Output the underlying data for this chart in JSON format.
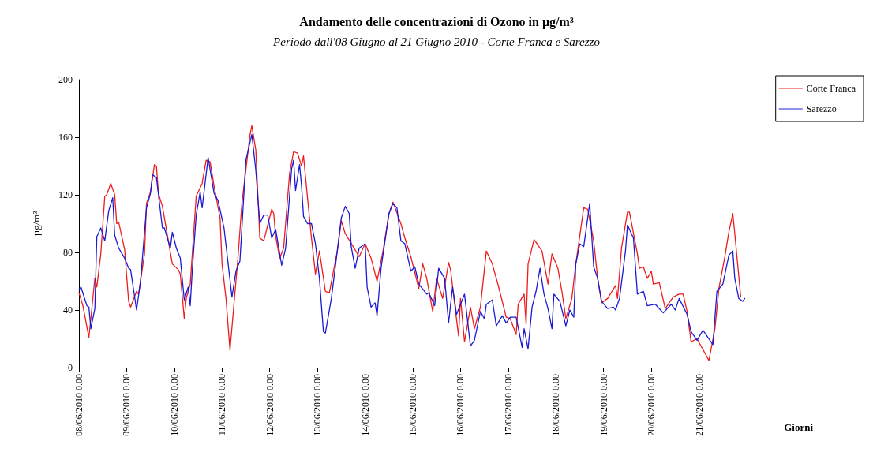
{
  "chart_data": {
    "type": "line",
    "title": "Andamento delle concentrazioni di Ozono in µg/m³",
    "subtitle": "Periodo dall'08 Giugno al 21 Giugno 2010 - Corte Franca e Sarezzo",
    "xlabel": "Giorni",
    "ylabel": "µg/m³",
    "legend": "top right",
    "grid": false,
    "marker": "none",
    "line_style": "solid",
    "xlim": [
      "2010-06-08T00:00",
      "2010-06-22T00:00"
    ],
    "xticks": [
      {
        "value": "2010-06-08T00:00",
        "label": "08/06/2010 0.00"
      },
      {
        "value": "2010-06-09T00:00",
        "label": "09/06/2010 0.00"
      },
      {
        "value": "2010-06-10T00:00",
        "label": "10/06/2010 0.00"
      },
      {
        "value": "2010-06-11T00:00",
        "label": "11/06/2010 0.00"
      },
      {
        "value": "2010-06-12T00:00",
        "label": "12/06/2010 0.00"
      },
      {
        "value": "2010-06-13T00:00",
        "label": "13/06/2010 0.00"
      },
      {
        "value": "2010-06-14T00:00",
        "label": "14/06/2010 0.00"
      },
      {
        "value": "2010-06-15T00:00",
        "label": "15/06/2010 0.00"
      },
      {
        "value": "2010-06-16T00:00",
        "label": "16/06/2010 0.00"
      },
      {
        "value": "2010-06-17T00:00",
        "label": "17/06/2010 0.00"
      },
      {
        "value": "2010-06-18T00:00",
        "label": "18/06/2010 0.00"
      },
      {
        "value": "2010-06-19T00:00",
        "label": "19/06/2010 0.00"
      },
      {
        "value": "2010-06-20T00:00",
        "label": "20/06/2010 0.00"
      },
      {
        "value": "2010-06-21T00:00",
        "label": "21/06/2010 0.00"
      },
      {
        "value": "2010-06-22T00:00",
        "label": null
      }
    ],
    "ylim": [
      0,
      200
    ],
    "yticks": [
      0,
      40,
      80,
      120,
      160,
      200
    ],
    "series": [
      {
        "name": "Corte Franca",
        "color": "#ee1c1c",
        "x": [
          "2010-06-08T00:00",
          "2010-06-08T02:00",
          "2010-06-08T05:00",
          "2010-06-08T06:00",
          "2010-06-08T08:00",
          "2010-06-08T09:00",
          "2010-06-08T11:00",
          "2010-06-08T13:00",
          "2010-06-08T14:00",
          "2010-06-08T16:00",
          "2010-06-08T18:00",
          "2010-06-08T19:00",
          "2010-06-08T20:00",
          "2010-06-08T23:00",
          "2010-06-09T01:00",
          "2010-06-09T02:00",
          "2010-06-09T05:00",
          "2010-06-09T06:00",
          "2010-06-09T09:00",
          "2010-06-09T10:00",
          "2010-06-09T12:00",
          "2010-06-09T14:00",
          "2010-06-09T15:00",
          "2010-06-09T16:00",
          "2010-06-09T18:00",
          "2010-06-09T21:00",
          "2010-06-09T23:00",
          "2010-06-10T02:00",
          "2010-06-10T03:00",
          "2010-06-10T05:00",
          "2010-06-10T06:00",
          "2010-06-10T08:00",
          "2010-06-10T11:00",
          "2010-06-10T14:00",
          "2010-06-10T16:00",
          "2010-06-10T18:00",
          "2010-06-10T20:00",
          "2010-06-10T23:00",
          "2010-06-11T00:00",
          "2010-06-11T02:00",
          "2010-06-11T04:00",
          "2010-06-11T06:00",
          "2010-06-11T08:00",
          "2010-06-11T10:00",
          "2010-06-11T14:00",
          "2010-06-11T15:00",
          "2010-06-11T17:00",
          "2010-06-11T19:00",
          "2010-06-11T21:00",
          "2010-06-12T01:00",
          "2010-06-12T02:00",
          "2010-06-12T03:00",
          "2010-06-12T05:00",
          "2010-06-12T07:00",
          "2010-06-12T10:00",
          "2010-06-12T12:00",
          "2010-06-12T14:00",
          "2010-06-12T16:00",
          "2010-06-12T17:00",
          "2010-06-12T19:00",
          "2010-06-12T21:00",
          "2010-06-12T23:00",
          "2010-06-13T01:00",
          "2010-06-13T04:00",
          "2010-06-13T06:00",
          "2010-06-13T10:00",
          "2010-06-13T12:00",
          "2010-06-13T14:00",
          "2010-06-13T18:00",
          "2010-06-13T21:00",
          "2010-06-14T00:00",
          "2010-06-14T03:00",
          "2010-06-14T06:00",
          "2010-06-14T09:00",
          "2010-06-14T12:00",
          "2010-06-14T14:00",
          "2010-06-14T18:00",
          "2010-06-14T20:00",
          "2010-06-14T23:00",
          "2010-06-15T03:00",
          "2010-06-15T05:00",
          "2010-06-15T07:00",
          "2010-06-15T10:00",
          "2010-06-15T12:00",
          "2010-06-15T15:00",
          "2010-06-15T18:00",
          "2010-06-15T19:00",
          "2010-06-15T23:00",
          "2010-06-16T00:00",
          "2010-06-16T02:00",
          "2010-06-16T05:00",
          "2010-06-16T07:00",
          "2010-06-16T10:00",
          "2010-06-16T13:00",
          "2010-06-16T16:00",
          "2010-06-16T19:00",
          "2010-06-16T23:00",
          "2010-06-17T01:00",
          "2010-06-17T04:00",
          "2010-06-17T05:00",
          "2010-06-17T08:00",
          "2010-06-17T09:00",
          "2010-06-17T10:00",
          "2010-06-17T13:00",
          "2010-06-17T16:00",
          "2010-06-17T17:00",
          "2010-06-17T20:00",
          "2010-06-17T22:00",
          "2010-06-18T01:00",
          "2010-06-18T03:00",
          "2010-06-18T05:00",
          "2010-06-18T08:00",
          "2010-06-18T10:00",
          "2010-06-18T14:00",
          "2010-06-18T16:00",
          "2010-06-18T19:00",
          "2010-06-18T21:00",
          "2010-06-18T23:00",
          "2010-06-19T02:00",
          "2010-06-19T06:00",
          "2010-06-19T07:00",
          "2010-06-19T09:00",
          "2010-06-19T12:00",
          "2010-06-19T13:00",
          "2010-06-19T17:00",
          "2010-06-19T18:00",
          "2010-06-19T20:00",
          "2010-06-19T22:00",
          "2010-06-20T00:00",
          "2010-06-20T01:00",
          "2010-06-20T04:00",
          "2010-06-20T07:00",
          "2010-06-20T11:00",
          "2010-06-20T14:00",
          "2010-06-20T16:00",
          "2010-06-20T18:00",
          "2010-06-20T20:00",
          "2010-06-20T23:00",
          "2010-06-21T05:00",
          "2010-06-21T08:00",
          "2010-06-21T10:00",
          "2010-06-21T13:00",
          "2010-06-21T15:00",
          "2010-06-21T17:00",
          "2010-06-21T18:00",
          "2010-06-21T21:00"
        ],
        "values": [
          52,
          43,
          21,
          34,
          62,
          56,
          79,
          119,
          120,
          128,
          120,
          100,
          101,
          82,
          46,
          42,
          53,
          51,
          79,
          114,
          122,
          141,
          140,
          121,
          112,
          88,
          72,
          68,
          65,
          34,
          48,
          58,
          119,
          128,
          144,
          143,
          126,
          104,
          72,
          48,
          12,
          44,
          76,
          114,
          161,
          168,
          151,
          90,
          88,
          110,
          107,
          91,
          76,
          83,
          135,
          150,
          149,
          140,
          147,
          118,
          90,
          65,
          81,
          53,
          52,
          81,
          102,
          93,
          84,
          77,
          86,
          76,
          60,
          81,
          107,
          115,
          100,
          90,
          77,
          55,
          72,
          62,
          39,
          62,
          48,
          73,
          68,
          22,
          48,
          18,
          42,
          27,
          42,
          81,
          72,
          57,
          35,
          34,
          23,
          44,
          51,
          30,
          72,
          89,
          83,
          81,
          58,
          79,
          69,
          53,
          34,
          48,
          72,
          111,
          110,
          88,
          62,
          45,
          48,
          57,
          48,
          83,
          108,
          108,
          79,
          69,
          70,
          62,
          67,
          58,
          59,
          41,
          49,
          51,
          51,
          39,
          18,
          20,
          5,
          27,
          55,
          77,
          94,
          107,
          93,
          49
        ]
      },
      {
        "name": "Sarezzo",
        "color": "#1a1ad6",
        "x": [
          "2010-06-08T00:00",
          "2010-06-08T01:00",
          "2010-06-08T04:00",
          "2010-06-08T05:00",
          "2010-06-08T06:00",
          "2010-06-08T08:00",
          "2010-06-08T09:00",
          "2010-06-08T11:00",
          "2010-06-08T13:00",
          "2010-06-08T15:00",
          "2010-06-08T17:00",
          "2010-06-08T18:00",
          "2010-06-08T20:00",
          "2010-06-08T23:00",
          "2010-06-09T01:00",
          "2010-06-09T02:00",
          "2010-06-09T05:00",
          "2010-06-09T07:00",
          "2010-06-09T10:00",
          "2010-06-09T12:00",
          "2010-06-09T13:00",
          "2010-06-09T15:00",
          "2010-06-09T18:00",
          "2010-06-09T19:00",
          "2010-06-09T22:00",
          "2010-06-09T23:00",
          "2010-06-10T01:00",
          "2010-06-10T03:00",
          "2010-06-10T05:00",
          "2010-06-10T07:00",
          "2010-06-10T08:00",
          "2010-06-10T09:00",
          "2010-06-10T11:00",
          "2010-06-10T13:00",
          "2010-06-10T14:00",
          "2010-06-10T17:00",
          "2010-06-10T20:00",
          "2010-06-10T22:00",
          "2010-06-11T01:00",
          "2010-06-11T05:00",
          "2010-06-11T07:00",
          "2010-06-11T09:00",
          "2010-06-11T12:00",
          "2010-06-11T15:00",
          "2010-06-11T17:00",
          "2010-06-11T19:00",
          "2010-06-11T21:00",
          "2010-06-11T23:00",
          "2010-06-12T01:00",
          "2010-06-12T03:00",
          "2010-06-12T06:00",
          "2010-06-12T08:00",
          "2010-06-12T11:00",
          "2010-06-12T12:00",
          "2010-06-12T13:00",
          "2010-06-12T15:00",
          "2010-06-12T16:00",
          "2010-06-12T17:00",
          "2010-06-12T19:00",
          "2010-06-12T21:00",
          "2010-06-12T23:00",
          "2010-06-13T01:00",
          "2010-06-13T03:00",
          "2010-06-13T04:00",
          "2010-06-13T07:00",
          "2010-06-13T10:00",
          "2010-06-13T12:00",
          "2010-06-13T14:00",
          "2010-06-13T16:00",
          "2010-06-13T17:00",
          "2010-06-13T19:00",
          "2010-06-13T21:00",
          "2010-06-14T00:00",
          "2010-06-14T01:00",
          "2010-06-14T03:00",
          "2010-06-14T05:00",
          "2010-06-14T06:00",
          "2010-06-14T08:00",
          "2010-06-14T10:00",
          "2010-06-14T12:00",
          "2010-06-14T14:00",
          "2010-06-14T16:00",
          "2010-06-14T18:00",
          "2010-06-14T20:00",
          "2010-06-14T23:00",
          "2010-06-15T01:00",
          "2010-06-15T03:00",
          "2010-06-15T07:00",
          "2010-06-15T08:00",
          "2010-06-15T11:00",
          "2010-06-15T13:00",
          "2010-06-15T16:00",
          "2010-06-15T18:00",
          "2010-06-15T20:00",
          "2010-06-15T22:00",
          "2010-06-16T02:00",
          "2010-06-16T05:00",
          "2010-06-16T07:00",
          "2010-06-16T10:00",
          "2010-06-16T12:00",
          "2010-06-16T13:00",
          "2010-06-16T16:00",
          "2010-06-16T18:00",
          "2010-06-16T21:00",
          "2010-06-16T23:00",
          "2010-06-17T01:00",
          "2010-06-17T04:00",
          "2010-06-17T05:00",
          "2010-06-17T07:00",
          "2010-06-17T08:00",
          "2010-06-17T10:00",
          "2010-06-17T12:00",
          "2010-06-17T14:00",
          "2010-06-17T16:00",
          "2010-06-17T18:00",
          "2010-06-17T20:00",
          "2010-06-17T22:00",
          "2010-06-17T23:00",
          "2010-06-18T02:00",
          "2010-06-18T05:00",
          "2010-06-18T07:00",
          "2010-06-18T09:00",
          "2010-06-18T10:00",
          "2010-06-18T12:00",
          "2010-06-18T14:00",
          "2010-06-18T17:00",
          "2010-06-18T19:00",
          "2010-06-18T21:00",
          "2010-06-18T23:00",
          "2010-06-19T02:00",
          "2010-06-19T05:00",
          "2010-06-19T06:00",
          "2010-06-19T08:00",
          "2010-06-19T11:00",
          "2010-06-19T12:00",
          "2010-06-19T15:00",
          "2010-06-19T17:00",
          "2010-06-19T20:00",
          "2010-06-19T22:00",
          "2010-06-20T02:00",
          "2010-06-20T06:00",
          "2010-06-20T10:00",
          "2010-06-20T12:00",
          "2010-06-20T14:00",
          "2010-06-20T18:00",
          "2010-06-20T20:00",
          "2010-06-20T23:00",
          "2010-06-21T02:00",
          "2010-06-21T07:00",
          "2010-06-21T09:00",
          "2010-06-21T12:00",
          "2010-06-21T15:00",
          "2010-06-21T17:00",
          "2010-06-21T18:00",
          "2010-06-21T20:00",
          "2010-06-21T22:00",
          "2010-06-21T23:00"
        ],
        "values": [
          54,
          56,
          43,
          42,
          27,
          41,
          91,
          97,
          88,
          109,
          118,
          92,
          83,
          76,
          69,
          68,
          40,
          60,
          111,
          121,
          134,
          132,
          97,
          97,
          83,
          94,
          83,
          76,
          47,
          56,
          43,
          67,
          106,
          122,
          111,
          146,
          121,
          116,
          97,
          49,
          67,
          74,
          144,
          162,
          137,
          100,
          106,
          106,
          90,
          96,
          71,
          83,
          138,
          144,
          123,
          141,
          126,
          105,
          100,
          100,
          86,
          62,
          25,
          24,
          48,
          81,
          104,
          112,
          107,
          84,
          69,
          83,
          86,
          56,
          42,
          45,
          36,
          69,
          88,
          107,
          114,
          111,
          88,
          86,
          67,
          70,
          58,
          51,
          52,
          43,
          69,
          62,
          31,
          56,
          37,
          51,
          15,
          19,
          39,
          34,
          44,
          47,
          29,
          36,
          31,
          35,
          35,
          28,
          14,
          27,
          13,
          42,
          53,
          69,
          51,
          41,
          27,
          51,
          46,
          29,
          40,
          35,
          72,
          86,
          84,
          114,
          70,
          62,
          46,
          41,
          42,
          40,
          48,
          81,
          99,
          90,
          51,
          53,
          43,
          44,
          38,
          44,
          40,
          48,
          37,
          25,
          19,
          26,
          16,
          53,
          58,
          78,
          81,
          62,
          48,
          46,
          48
        ]
      }
    ]
  }
}
